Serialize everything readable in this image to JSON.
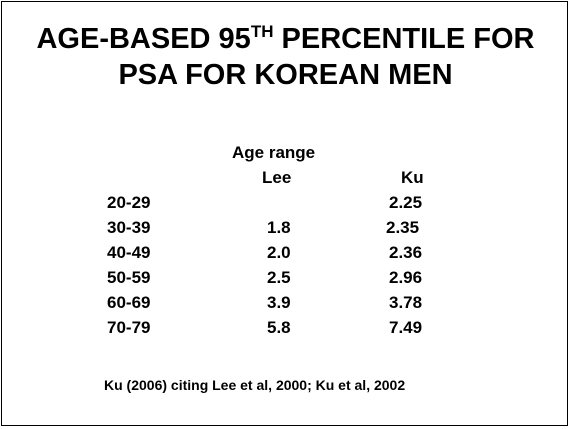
{
  "title": {
    "line1_before": "AGE-BASED 95",
    "line1_sup": "TH",
    "line1_after": " PERCENTILE FOR",
    "line2": "PSA FOR KOREAN MEN"
  },
  "table": {
    "group_header": "Age range",
    "columns": [
      "Lee",
      "Ku"
    ],
    "rows": [
      {
        "age": "20-29",
        "lee": "",
        "ku": "2.25"
      },
      {
        "age": "30-39",
        "lee": "1.8",
        "ku": "2.35"
      },
      {
        "age": "40-49",
        "lee": "2.0",
        "ku": "2.36"
      },
      {
        "age": "50-59",
        "lee": "2.5",
        "ku": "2.96"
      },
      {
        "age": "60-69",
        "lee": "3.9",
        "ku": "3.78"
      },
      {
        "age": "70-79",
        "lee": "5.8",
        "ku": "7.49"
      }
    ]
  },
  "citation": "Ku (2006) citing Lee et al, 2000; Ku et al, 2002"
}
